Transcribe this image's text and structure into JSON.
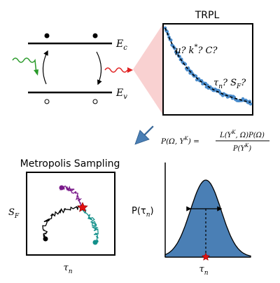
{
  "band_diagram": {
    "conduction_label": "E",
    "conduction_sub": "c",
    "valence_label": "E",
    "valence_sub": "v",
    "excitation_color": "#2a9a2a",
    "emission_color": "#e02020"
  },
  "trpl_panel": {
    "title": "TRPL",
    "params_top": "μ? k",
    "params_top_sup": "*",
    "params_top_tail": "? C?",
    "params_bottom_tau": "τ",
    "params_bottom_sub": "n",
    "params_bottom_mid": "? S",
    "params_bottom_sub2": "F",
    "params_bottom_tail": "?",
    "data_color": "#4a8ccc",
    "fit_color": "#000000"
  },
  "bayes": {
    "lhs": "P(Ω, Y",
    "lhs_sup": "K",
    "lhs_close": ") =",
    "numerator": "L(Y",
    "numerator_sup": "K",
    "numerator_tail": ", Ω)P(Ω)",
    "denominator": "P(Y",
    "denominator_sup": "K",
    "denominator_tail": ")",
    "arrow_color": "#4a7fb5"
  },
  "sampling_panel": {
    "title": "Metropolis Sampling",
    "y_label": "S",
    "y_label_sub": "F",
    "x_label": "τ",
    "x_label_sub": "n",
    "chain_colors": [
      "#000000",
      "#7a1a8a",
      "#13908a"
    ],
    "star_color": "#e01010"
  },
  "posterior_panel": {
    "y_label": "P(τ",
    "y_label_sub": "n",
    "y_label_tail": ")",
    "x_label": "τ",
    "x_label_sub": "n",
    "fill_color": "#4a7fb5",
    "star_color": "#e01010"
  }
}
